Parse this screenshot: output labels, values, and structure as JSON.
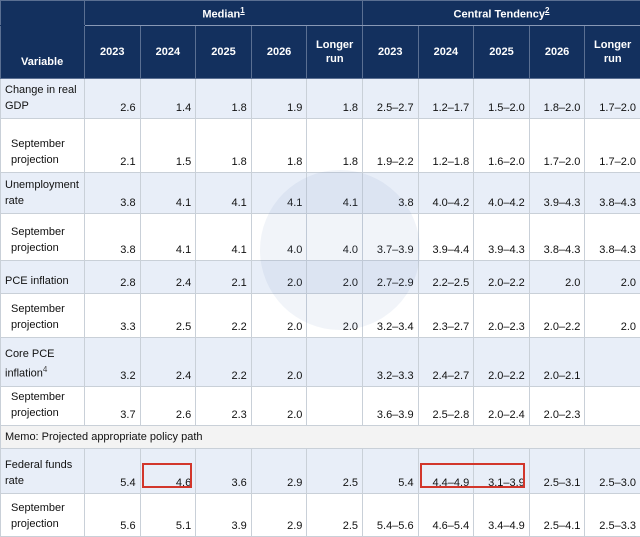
{
  "header": {
    "variable": "Variable",
    "median_group": "Median",
    "median_fn": "1",
    "ct_group": "Central Tendency",
    "ct_fn": "2",
    "years": [
      "2023",
      "2024",
      "2025",
      "2026"
    ],
    "longer_run_1": "Longer",
    "longer_run_2": "run"
  },
  "rows": [
    {
      "l1": "Change in real",
      "l2": "GDP",
      "m": [
        "2.6",
        "1.4",
        "1.8",
        "1.9",
        "1.8"
      ],
      "c": [
        "2.5–2.7",
        "1.2–1.7",
        "1.5–2.0",
        "1.8–2.0",
        "1.7–2.0"
      ]
    },
    {
      "l1": "September",
      "l2": "projection",
      "m": [
        "2.1",
        "1.5",
        "1.8",
        "1.8",
        "1.8"
      ],
      "c": [
        "1.9–2.2",
        "1.2–1.8",
        "1.6–2.0",
        "1.7–2.0",
        "1.7–2.0"
      ]
    },
    {
      "l1": "Unemployment",
      "l2": "rate",
      "m": [
        "3.8",
        "4.1",
        "4.1",
        "4.1",
        "4.1"
      ],
      "c": [
        "3.8",
        "4.0–4.2",
        "4.0–4.2",
        "3.9–4.3",
        "3.8–4.3"
      ]
    },
    {
      "l1": "September",
      "l2": "projection",
      "m": [
        "3.8",
        "4.1",
        "4.1",
        "4.0",
        "4.0"
      ],
      "c": [
        "3.7–3.9",
        "3.9–4.4",
        "3.9–4.3",
        "3.8–4.3",
        "3.8–4.3"
      ]
    },
    {
      "l1": "PCE inflation",
      "l2": "",
      "m": [
        "2.8",
        "2.4",
        "2.1",
        "2.0",
        "2.0"
      ],
      "c": [
        "2.7–2.9",
        "2.2–2.5",
        "2.0–2.2",
        "2.0",
        "2.0"
      ]
    },
    {
      "l1": "September",
      "l2": "projection",
      "m": [
        "3.3",
        "2.5",
        "2.2",
        "2.0",
        "2.0"
      ],
      "c": [
        "3.2–3.4",
        "2.3–2.7",
        "2.0–2.3",
        "2.0–2.2",
        "2.0"
      ]
    },
    {
      "l1": "Core PCE",
      "l2": "inflation",
      "fn": "4",
      "m": [
        "3.2",
        "2.4",
        "2.2",
        "2.0",
        ""
      ],
      "c": [
        "3.2–3.3",
        "2.4–2.7",
        "2.0–2.2",
        "2.0–2.1",
        ""
      ]
    },
    {
      "l1": "September",
      "l2": "projection",
      "m": [
        "3.7",
        "2.6",
        "2.3",
        "2.0",
        ""
      ],
      "c": [
        "3.6–3.9",
        "2.5–2.8",
        "2.0–2.4",
        "2.0–2.3",
        ""
      ]
    },
    {
      "memo": "Memo: Projected appropriate policy path"
    },
    {
      "l1": "Federal funds",
      "l2": "rate",
      "m": [
        "5.4",
        "4.6",
        "3.6",
        "2.9",
        "2.5"
      ],
      "c": [
        "5.4",
        "4.4–4.9",
        "3.1–3.9",
        "2.5–3.1",
        "2.5–3.0"
      ]
    },
    {
      "l1": "September",
      "l2": "projection",
      "m": [
        "5.6",
        "5.1",
        "3.9",
        "2.9",
        "2.5"
      ],
      "c": [
        "5.4–5.6",
        "4.6–5.4",
        "3.4–4.9",
        "2.5–4.1",
        "2.5–3.3"
      ]
    }
  ],
  "highlight_color": "#d2362b",
  "header_color": "#13305e"
}
